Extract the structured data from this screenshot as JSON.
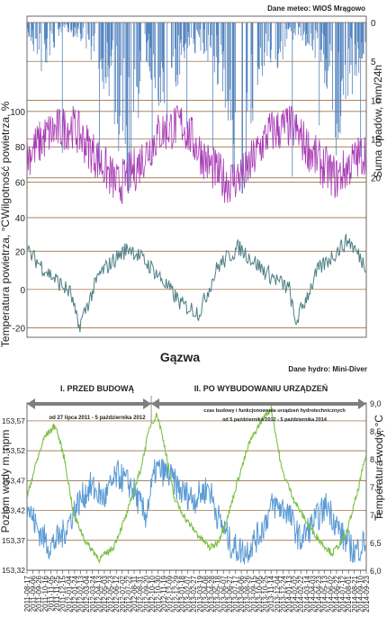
{
  "chart_data": [
    {
      "type": "line",
      "ylabel": "Suma opadów, mm/24h",
      "annotation": "Dane meteo: WIOŚ Mrągowo",
      "y_ticks": [
        "0",
        "5",
        "10",
        "15",
        "20"
      ],
      "ylim": [
        0,
        22
      ],
      "y_inverted": true,
      "series": [
        {
          "color": "#4f81bd",
          "x": [
            "2011-08-17",
            "2011-10-05",
            "2011-12-20",
            "2012-03-01",
            "2012-05-15",
            "2012-07-20",
            "2012-09-15",
            "2012-11-20",
            "2013-02-01",
            "2013-04-15",
            "2013-06-20",
            "2013-08-10",
            "2013-09-15",
            "2013-11-20",
            "2014-02-01",
            "2014-04-15",
            "2014-06-20",
            "2014-08-01",
            "2014-09-23"
          ],
          "values": [
            1,
            4,
            0.5,
            2,
            6,
            14,
            3,
            9,
            2,
            3,
            8,
            22,
            5,
            4,
            1,
            3,
            11,
            6,
            2
          ]
        }
      ]
    },
    {
      "type": "line",
      "ylabel": "Wilgotność powietrza, %",
      "y_ticks": [
        "40",
        "60",
        "80",
        "100"
      ],
      "ylim": [
        40,
        105
      ],
      "series": [
        {
          "color": "#a83ab5",
          "x": [
            "2011-08-17",
            "2011-11-01",
            "2012-01-15",
            "2012-04-15",
            "2012-06-15",
            "2012-08-15",
            "2012-11-01",
            "2013-01-15",
            "2013-04-15",
            "2013-06-15",
            "2013-08-15",
            "2013-11-01",
            "2014-01-15",
            "2014-04-15",
            "2014-06-15",
            "2014-08-01",
            "2014-09-23"
          ],
          "values": [
            75,
            88,
            92,
            72,
            58,
            68,
            88,
            93,
            70,
            60,
            65,
            88,
            92,
            72,
            62,
            70,
            78
          ]
        }
      ]
    },
    {
      "type": "line",
      "ylabel": "Temperatura powietrza, °C",
      "y_ticks": [
        "-20",
        "0",
        "20"
      ],
      "ylim": [
        -25,
        30
      ],
      "series": [
        {
          "color": "#4e7f86",
          "x": [
            "2011-08-17",
            "2011-11-01",
            "2012-01-10",
            "2012-02-05",
            "2012-04-15",
            "2012-06-20",
            "2012-07-25",
            "2012-10-15",
            "2013-01-15",
            "2013-03-15",
            "2013-05-15",
            "2013-07-25",
            "2013-10-15",
            "2014-01-10",
            "2014-01-28",
            "2014-04-15",
            "2014-07-25",
            "2014-09-23"
          ],
          "values": [
            20,
            8,
            -2,
            -20,
            8,
            18,
            22,
            10,
            -8,
            -12,
            12,
            22,
            10,
            0,
            -18,
            10,
            26,
            12
          ]
        }
      ]
    },
    {
      "type": "line",
      "title": "Gązwa",
      "annotation": "Dane hydro: Mini-Diver",
      "phases": [
        {
          "label": "I. PRZED BUDOWĄ",
          "sub": "od 27 lipca 2011 - 5 października 2012",
          "start": "2011-07-27",
          "end": "2012-10-05"
        },
        {
          "label": "II. PO WYBUDOWANIU URZĄDZEŃ",
          "sub1": "czas budowy i funkcjonowania urządzeń hydrotechnicznych",
          "sub2": "od 5 października 2012 - 5 października 2014",
          "start": "2012-10-05",
          "end": "2014-10-05"
        }
      ],
      "ylabel": "Poziom wody m. npm",
      "y2label": "Temperatura wody, °C",
      "y_ticks": [
        "153,57",
        "153,52",
        "153,47",
        "153,42",
        "153,37",
        "153,32"
      ],
      "y2_ticks": [
        "9,0",
        "8,5",
        "8,0",
        "7,5",
        "7,0",
        "6,5",
        "6,0"
      ],
      "ylim": [
        153.32,
        153.6
      ],
      "y2lim": [
        6.0,
        9.0
      ],
      "x_ticks": [
        "2011-08-17",
        "2011-09-06",
        "2011-09-26",
        "2011-10-16",
        "2011-11-05",
        "2011-11-25",
        "2011-12-15",
        "2012-01-04",
        "2012-01-24",
        "2012-02-13",
        "2012-03-04",
        "2012-03-24",
        "2012-04-13",
        "2012-05-03",
        "2012-05-23",
        "2012-06-12",
        "2012-07-02",
        "2012-07-22",
        "2012-08-11",
        "2012-08-31",
        "2012-09-20",
        "2012-10-10",
        "2012-10-30",
        "2012-11-19",
        "2012-12-09",
        "2012-12-29",
        "2013-01-18",
        "2013-02-07",
        "2013-02-27",
        "2013-03-19",
        "2013-04-08",
        "2013-04-28",
        "2013-05-18",
        "2013-06-07",
        "2013-06-27",
        "2013-07-17",
        "2013-08-06",
        "2013-08-26",
        "2013-09-15",
        "2013-10-05",
        "2013-10-25",
        "2013-11-14",
        "2013-12-04",
        "2013-12-24",
        "2014-01-13",
        "2014-02-02",
        "2014-02-22",
        "2014-03-14",
        "2014-04-03",
        "2014-04-23",
        "2014-05-13",
        "2014-06-02",
        "2014-06-22",
        "2014-07-12",
        "2014-08-01",
        "2014-08-21",
        "2014-09-10",
        "2014-09-23"
      ],
      "series": [
        {
          "axis": "left",
          "color": "#5b9bd5",
          "x": [
            "2011-08-17",
            "2011-09-20",
            "2011-11-01",
            "2011-12-15",
            "2012-02-01",
            "2012-03-15",
            "2012-05-01",
            "2012-06-15",
            "2012-08-01",
            "2012-09-15",
            "2012-10-20",
            "2012-12-01",
            "2013-01-15",
            "2013-03-01",
            "2013-04-15",
            "2013-05-15",
            "2013-07-01",
            "2013-08-15",
            "2013-10-01",
            "2013-11-15",
            "2014-01-01",
            "2014-02-15",
            "2014-04-01",
            "2014-05-15",
            "2014-07-01",
            "2014-08-15",
            "2014-09-23"
          ],
          "values": [
            153.43,
            153.39,
            153.36,
            153.38,
            153.43,
            153.46,
            153.44,
            153.48,
            153.46,
            153.41,
            153.49,
            153.48,
            153.45,
            153.44,
            153.46,
            153.41,
            153.36,
            153.35,
            153.38,
            153.43,
            153.42,
            153.37,
            153.4,
            153.43,
            153.38,
            153.35,
            153.37
          ]
        },
        {
          "axis": "right",
          "color": "#7ac143",
          "x": [
            "2011-08-17",
            "2011-09-10",
            "2011-10-15",
            "2011-11-20",
            "2011-12-20",
            "2012-01-20",
            "2012-03-01",
            "2012-04-15",
            "2012-05-30",
            "2012-07-15",
            "2012-08-30",
            "2012-10-01",
            "2012-10-25",
            "2012-11-20",
            "2012-12-20",
            "2013-01-30",
            "2013-03-15",
            "2013-04-20",
            "2013-05-15",
            "2013-06-20",
            "2013-07-20",
            "2013-08-30",
            "2013-10-10",
            "2013-11-10",
            "2013-12-15",
            "2014-01-30",
            "2014-03-15",
            "2014-04-25",
            "2014-06-01",
            "2014-07-15",
            "2014-08-25",
            "2014-09-23"
          ],
          "values": [
            7.3,
            7.8,
            8.4,
            8.6,
            8.0,
            7.0,
            6.5,
            6.2,
            6.4,
            7.0,
            7.8,
            8.6,
            8.8,
            8.2,
            7.3,
            6.9,
            6.6,
            6.4,
            6.5,
            7.0,
            7.6,
            8.3,
            8.7,
            8.9,
            7.8,
            7.2,
            6.8,
            6.5,
            6.3,
            6.6,
            7.4,
            8.1
          ]
        }
      ]
    }
  ]
}
